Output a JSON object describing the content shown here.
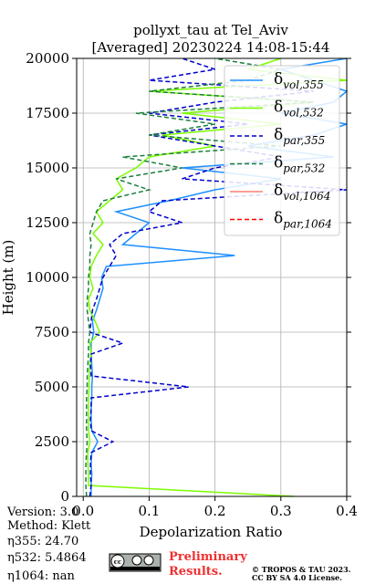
{
  "chart_data": {
    "type": "profile",
    "title": "pollyxt_tau at Tel_Aviv",
    "subtitle": "[Averaged] 20230224 14:08-15:44",
    "xlabel": "Depolarization Ratio",
    "ylabel": "Height (m)",
    "xlim": [
      -0.01,
      0.4
    ],
    "ylim": [
      0,
      20000
    ],
    "xticks": [
      {
        "value": 0,
        "label": "0.0"
      },
      0.1,
      0.2,
      0.3,
      0.4
    ],
    "yticks": [
      0,
      2500,
      5000,
      7500,
      10000,
      12500,
      15000,
      17500,
      20000
    ],
    "grid": true,
    "legend": "upper right",
    "y": [
      0,
      500,
      1000,
      1500,
      2000,
      2500,
      3000,
      3500,
      4000,
      4500,
      5000,
      5500,
      6000,
      6500,
      7000,
      7500,
      8000,
      8500,
      9000,
      9500,
      10000,
      10500,
      11000,
      11500,
      12000,
      12500,
      13000,
      13500,
      14000,
      14500,
      15000,
      15500,
      16000,
      16500,
      17000,
      17500,
      18000,
      18500,
      19000,
      19500,
      20000
    ],
    "series": [
      {
        "name": "δvol,355",
        "color": "#1e90ff",
        "linestyle": "solid",
        "values": [
          0.012,
          0.012,
          0.013,
          0.012,
          0.013,
          0.022,
          0.013,
          0.012,
          0.012,
          0.013,
          0.013,
          0.014,
          0.013,
          0.012,
          0.012,
          0.016,
          0.014,
          0.02,
          0.025,
          0.03,
          0.028,
          0.035,
          0.23,
          0.06,
          0.08,
          0.1,
          0.05,
          0.13,
          0.2,
          0.3,
          0.15,
          0.38,
          0.25,
          0.35,
          0.4,
          0.3,
          0.38,
          0.4,
          0.35,
          0.3,
          0.4
        ]
      },
      {
        "name": "δvol,532",
        "color": "#7cfc00",
        "linestyle": "solid",
        "values": [
          0.32,
          0.008,
          0.008,
          0.007,
          0.007,
          0.01,
          0.008,
          0.008,
          0.008,
          0.008,
          0.009,
          0.009,
          0.01,
          0.012,
          0.01,
          0.025,
          0.018,
          0.01,
          0.008,
          0.015,
          0.01,
          0.012,
          0.02,
          0.03,
          0.015,
          0.03,
          0.02,
          0.04,
          0.06,
          0.05,
          0.08,
          0.1,
          0.2,
          0.12,
          0.3,
          0.15,
          0.35,
          0.1,
          0.4,
          0.25,
          0.3
        ]
      },
      {
        "name": "δpar,355",
        "color": "#0000cd",
        "linestyle": "dashed",
        "values": [
          0.01,
          0.012,
          0.011,
          0.011,
          0.012,
          0.045,
          0.012,
          0.011,
          0.012,
          0.012,
          0.16,
          0.012,
          0.011,
          0.012,
          0.06,
          0.01,
          0.012,
          0.014,
          0.02,
          0.025,
          0.03,
          0.04,
          0.05,
          0.04,
          0.06,
          0.15,
          0.1,
          0.12,
          0.4,
          0.15,
          0.2,
          0.3,
          0.2,
          0.1,
          0.25,
          0.1,
          0.2,
          0.35,
          0.1,
          0.2,
          0.15
        ]
      },
      {
        "name": "δpar,532",
        "color": "#1a7f3c",
        "linestyle": "dashed",
        "values": [
          0.005,
          0.004,
          0.004,
          0.004,
          0.005,
          0.006,
          0.005,
          0.005,
          0.005,
          0.005,
          0.006,
          0.006,
          0.007,
          0.008,
          0.008,
          0.01,
          0.008,
          0.006,
          0.006,
          0.008,
          0.008,
          0.01,
          0.01,
          0.012,
          0.01,
          0.015,
          0.02,
          0.03,
          0.1,
          0.05,
          0.15,
          0.06,
          0.3,
          0.1,
          0.2,
          0.08,
          0.35,
          0.1,
          0.25,
          0.3,
          0.2
        ]
      },
      {
        "name": "δvol,1064",
        "color": "#fa8072",
        "linestyle": "solid",
        "values": [
          null,
          null,
          null,
          null,
          null,
          null,
          null,
          null,
          null,
          null,
          null,
          null,
          null,
          null,
          null,
          null,
          null,
          null,
          null,
          null,
          null,
          null,
          null,
          null,
          null,
          null,
          null,
          null,
          null,
          null,
          null,
          null,
          null,
          null,
          null,
          null,
          null,
          null,
          null,
          null,
          null
        ]
      },
      {
        "name": "δpar,1064",
        "color": "#ff0000",
        "linestyle": "dashed",
        "values": [
          null,
          null,
          null,
          null,
          null,
          null,
          null,
          null,
          null,
          null,
          null,
          null,
          null,
          null,
          null,
          null,
          null,
          null,
          null,
          null,
          null,
          null,
          null,
          null,
          null,
          null,
          null,
          null,
          null,
          null,
          null,
          null,
          null,
          null,
          null,
          null,
          null,
          null,
          null,
          null,
          null
        ]
      }
    ]
  },
  "info": [
    "Version: 3.0",
    "Method: Klett",
    "η355:  24.70",
    "η532: 5.4864",
    "η1064:    nan"
  ],
  "notice": [
    "Preliminary",
    "Results."
  ],
  "copyright": [
    "© TROPOS & TAU 2023.",
    "CC BY SA 4.0 License."
  ]
}
